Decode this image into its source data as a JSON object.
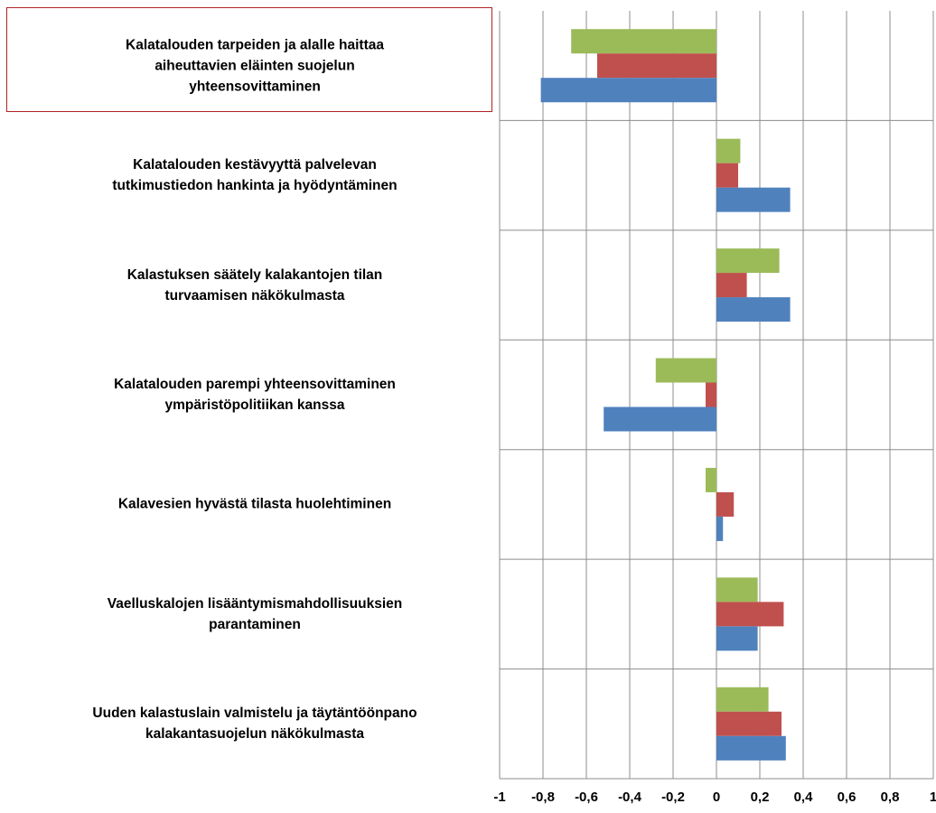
{
  "chart_data": {
    "type": "hbar",
    "categories": [
      "Kalatalouden tarpeiden ja alalle haittaa\naiheuttavien eläinten suojelun\nyhteensovittaminen",
      "Kalatalouden kestävyyttä palvelevan\ntutkimustiedon hankinta ja hyödyntäminen",
      "Kalastuksen säätely kalakantojen tilan\nturvaamisen näkökulmasta",
      "Kalatalouden parempi yhteensovittaminen\nympäristöpolitiikan kanssa",
      "Kalavesien hyvästä tilasta huolehtiminen",
      "Vaelluskalojen lisääntymismahdollisuuksien\nparantaminen",
      "Uuden kalastuslain valmistelu ja täytäntöönpano\nkalakantasuojelun näkökulmasta"
    ],
    "series": [
      {
        "color": "#9bbb59",
        "values": [
          -0.67,
          0.11,
          0.29,
          -0.28,
          -0.05,
          0.19,
          0.24
        ]
      },
      {
        "color": "#c0504d",
        "values": [
          -0.55,
          0.1,
          0.14,
          -0.05,
          0.08,
          0.31,
          0.3
        ]
      },
      {
        "color": "#4f81bd",
        "values": [
          -0.81,
          0.34,
          0.34,
          -0.52,
          0.03,
          0.19,
          0.32
        ]
      }
    ],
    "xlim": [
      -1,
      1
    ],
    "xticks": [
      -1,
      {
        "value": -0.8,
        "label": "-0,8"
      },
      {
        "value": -0.6,
        "label": "-0,6"
      },
      {
        "value": -0.4,
        "label": "-0,4"
      },
      {
        "value": -0.2,
        "label": "-0,2"
      },
      0,
      {
        "value": 0.2,
        "label": "0,2"
      },
      {
        "value": 0.4,
        "label": "0,4"
      },
      {
        "value": 0.6,
        "label": "0,6"
      },
      {
        "value": 0.8,
        "label": "0,8"
      },
      1
    ],
    "grid": true
  }
}
